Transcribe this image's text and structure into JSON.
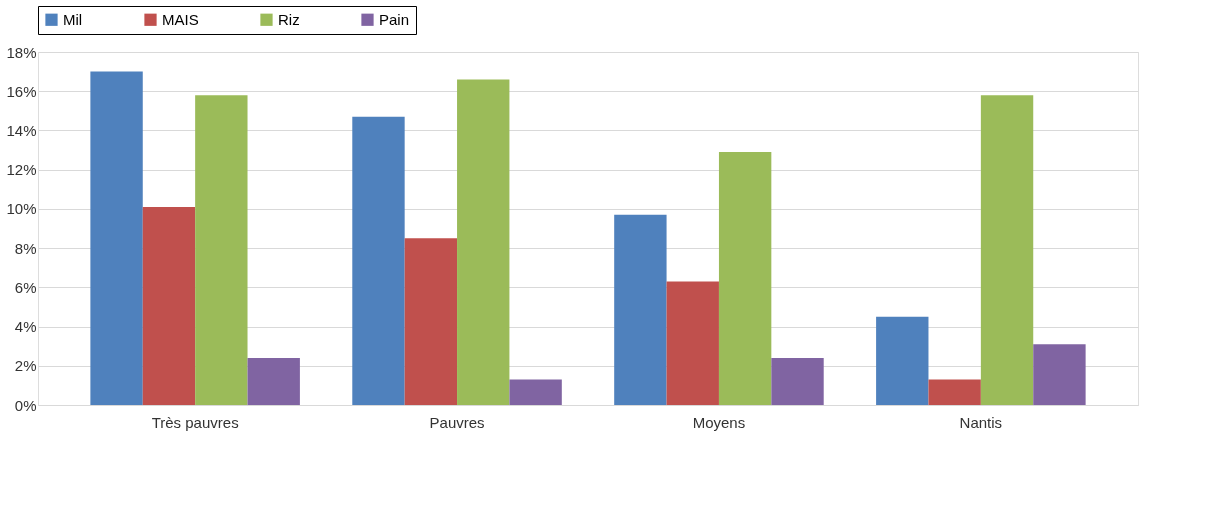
{
  "chart_data": {
    "type": "bar",
    "categories": [
      "Très pauvres",
      "Pauvres",
      "Moyens",
      "Nantis"
    ],
    "series": [
      {
        "name": "Mil",
        "color": "#4f81bd",
        "values": [
          17.0,
          14.7,
          9.7,
          4.5
        ]
      },
      {
        "name": "MAIS",
        "color": "#c0504d",
        "values": [
          10.1,
          8.5,
          6.3,
          1.3
        ]
      },
      {
        "name": "Riz",
        "color": "#9bbb59",
        "values": [
          15.8,
          16.6,
          12.9,
          15.8
        ]
      },
      {
        "name": "Pain",
        "color": "#8064a2",
        "values": [
          2.4,
          1.3,
          2.4,
          3.1
        ]
      }
    ],
    "ylim": [
      0,
      18
    ],
    "yticks": [
      {
        "value": 0,
        "label": "0%"
      },
      {
        "value": 2,
        "label": "2%"
      },
      {
        "value": 4,
        "label": "4%"
      },
      {
        "value": 6,
        "label": "6%"
      },
      {
        "value": 8,
        "label": "8%"
      },
      {
        "value": 10,
        "label": "10%"
      },
      {
        "value": 12,
        "label": "12%"
      },
      {
        "value": 14,
        "label": "14%"
      },
      {
        "value": 16,
        "label": "16%"
      },
      {
        "value": 18,
        "label": "18%"
      }
    ],
    "grid": "y",
    "legend": "top"
  }
}
